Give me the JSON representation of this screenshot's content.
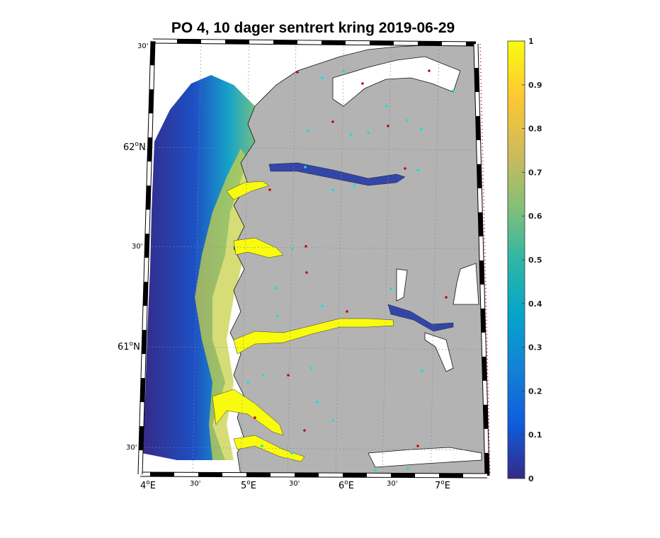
{
  "title": "PO 4, 10 dager sentrert kring 2019-06-29",
  "map": {
    "lon_labels": [
      {
        "deg": "4",
        "suffix": "E"
      },
      {
        "text": "30'"
      },
      {
        "deg": "5",
        "suffix": "E"
      },
      {
        "text": "30'"
      },
      {
        "deg": "6",
        "suffix": "E"
      },
      {
        "text": "30'"
      },
      {
        "deg": "7",
        "suffix": "E"
      }
    ],
    "lat_labels": [
      {
        "text": "30'"
      },
      {
        "deg": "62",
        "suffix": "N"
      },
      {
        "text": "30'"
      },
      {
        "deg": "61",
        "suffix": "N"
      },
      {
        "text": "30'"
      }
    ],
    "colors": {
      "land": "#b3b3b3",
      "ocean": "#ffffff",
      "low": "#352a87",
      "high": "#f9fb0e",
      "site_marker": "#00e5e5",
      "boundary_marker": "#cc0000"
    }
  },
  "colorbar": {
    "ticks": [
      "1",
      "0.9",
      "0.8",
      "0.7",
      "0.6",
      "0.5",
      "0.4",
      "0.3",
      "0.2",
      "0.1",
      "0"
    ],
    "stops": [
      "#352a87",
      "#0f5cdd",
      "#1481d6",
      "#06a4ca",
      "#2eb7a4",
      "#87bf77",
      "#d1bb59",
      "#fec832",
      "#f9fb0e"
    ]
  }
}
